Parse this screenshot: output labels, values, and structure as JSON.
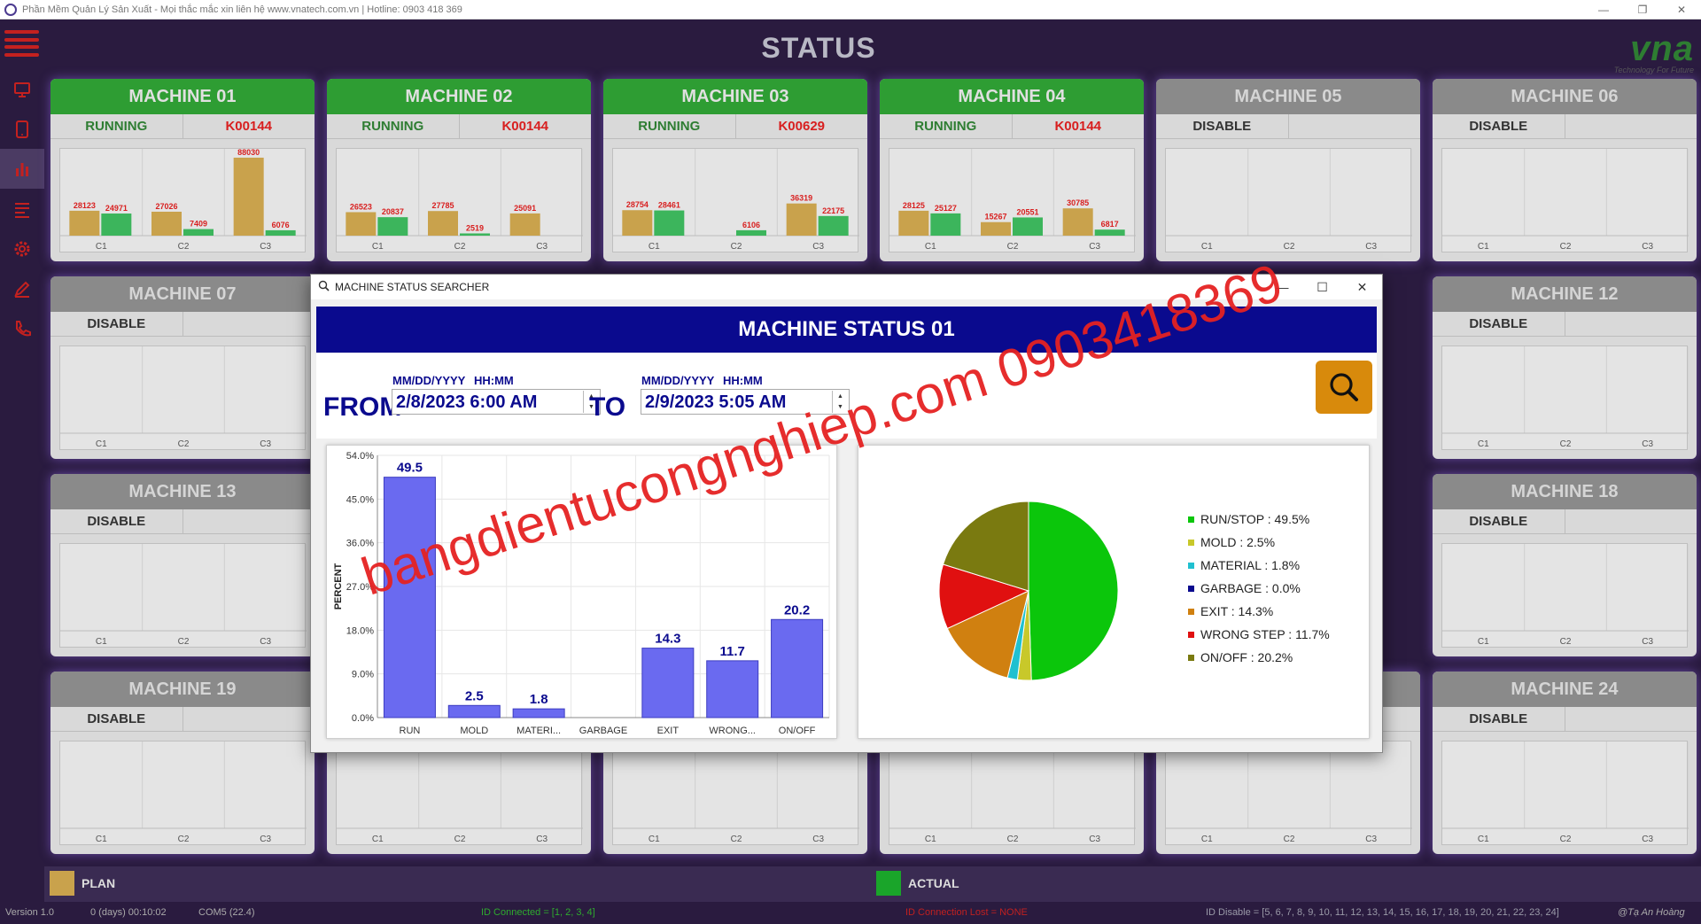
{
  "window": {
    "title": "Phần Mềm Quản Lý Sản Xuất - Mọi thắc mắc xin liên hệ www.vnatech.com.vn | Hotline: 0903 418 369",
    "controls": [
      "—",
      "❐",
      "✕"
    ]
  },
  "header": {
    "title": "STATUS"
  },
  "logo": {
    "mark": "vna",
    "tagline": "Technology For Future"
  },
  "sidebar": {
    "items": [
      {
        "icon": "monitor-icon",
        "active": false
      },
      {
        "icon": "tablet-icon",
        "active": false
      },
      {
        "icon": "bar-chart-icon",
        "active": true
      },
      {
        "icon": "list-icon",
        "active": false
      },
      {
        "icon": "gear-icon",
        "active": false
      },
      {
        "icon": "pencil-icon",
        "active": false
      },
      {
        "icon": "phone-icon",
        "active": false
      }
    ]
  },
  "colors": {
    "plan": "#c9a24c",
    "actual": "#3cb55c",
    "running": "#2e9d33",
    "disabled": "#8a8a8a",
    "value_label": "#d81f1f"
  },
  "machines": [
    {
      "name": "MACHINE 01",
      "status": "RUNNING",
      "code": "K00144",
      "plan": [
        28123,
        27026,
        88030
      ],
      "actual": [
        24971,
        7409,
        6076
      ]
    },
    {
      "name": "MACHINE 02",
      "status": "RUNNING",
      "code": "K00144",
      "plan": [
        26523,
        27785,
        25091
      ],
      "actual": [
        20837,
        2519,
        null
      ]
    },
    {
      "name": "MACHINE 03",
      "status": "RUNNING",
      "code": "K00629",
      "plan": [
        28754,
        null,
        36319
      ],
      "actual": [
        28461,
        6106,
        22175
      ]
    },
    {
      "name": "MACHINE 04",
      "status": "RUNNING",
      "code": "K00144",
      "plan": [
        28125,
        15267,
        30785
      ],
      "actual": [
        25127,
        20551,
        6817
      ]
    },
    {
      "name": "MACHINE 05",
      "status": "DISABLE",
      "code": ""
    },
    {
      "name": "MACHINE 06",
      "status": "DISABLE",
      "code": ""
    },
    {
      "name": "MACHINE 07",
      "status": "DISABLE",
      "code": ""
    },
    {
      "name": "MACHINE 12",
      "status": "DISABLE",
      "code": ""
    },
    {
      "name": "MACHINE 13",
      "status": "DISABLE",
      "code": ""
    },
    {
      "name": "MACHINE 18",
      "status": "DISABLE",
      "code": ""
    },
    {
      "name": "MACHINE 19",
      "status": "DISABLE",
      "code": ""
    },
    {
      "name": "MACHINE 24",
      "status": "DISABLE",
      "code": ""
    },
    {
      "name": "",
      "status": "",
      "code": ""
    },
    {
      "name": "",
      "status": "",
      "code": ""
    },
    {
      "name": "",
      "status": "",
      "code": ""
    },
    {
      "name": "",
      "status": "",
      "code": ""
    }
  ],
  "card_categories": [
    "C1",
    "C2",
    "C3"
  ],
  "legend": {
    "plan": "PLAN",
    "actual": "ACTUAL"
  },
  "statusbar": {
    "version": "Version 1.0",
    "uptime": "0 (days) 00:10:02",
    "port": "COM5 (22.4)",
    "connected": "ID Connected = [1, 2, 3, 4]",
    "lost": "ID Connection Lost = NONE",
    "disabled": "ID Disable = [5, 6, 7, 8, 9, 10, 11, 12, 13, 14, 15, 16, 17, 18, 19, 20, 21, 22, 23, 24]",
    "author": "@Tạ An Hoàng"
  },
  "dialog": {
    "window_title": "MACHINE STATUS SEARCHER",
    "title": "MACHINE STATUS 01",
    "from_label": "FROM",
    "to_label": "TO",
    "date_format": "MM/DD/YYYY",
    "time_format": "HH:MM",
    "from_value": "2/8/2023 6:00 AM",
    "to_value": "2/9/2023 5:05 AM"
  },
  "chart_data": [
    {
      "type": "bar",
      "ylabel": "PERCENT",
      "ylim": [
        0,
        54
      ],
      "yticks": [
        "0.0%",
        "9.0%",
        "18.0%",
        "27.0%",
        "36.0%",
        "45.0%",
        "54.0%"
      ],
      "categories": [
        "RUN",
        "MOLD",
        "MATERI...",
        "GARBAGE",
        "EXIT",
        "WRONG...",
        "ON/OFF"
      ],
      "values": [
        49.5,
        2.5,
        1.8,
        0.0,
        14.3,
        11.7,
        20.2
      ],
      "data_labels": [
        "49.5",
        "2.5",
        "1.8",
        "",
        "14.3",
        "11.7",
        "20.2"
      ],
      "color": "#6a6af0",
      "grid": true
    },
    {
      "type": "pie",
      "labels": [
        "RUN/STOP : 49.5%",
        "MOLD : 2.5%",
        "MATERIAL : 1.8%",
        "GARBAGE : 0.0%",
        "EXIT : 14.3%",
        "WRONG STEP : 11.7%",
        "ON/OFF : 20.2%"
      ],
      "values": [
        49.5,
        2.5,
        1.8,
        0.0,
        14.3,
        11.7,
        20.2
      ],
      "colors": [
        "#0bc60b",
        "#c8c82a",
        "#20c0d0",
        "#0a0a8e",
        "#d08010",
        "#e01010",
        "#7a7a10"
      ],
      "legend_position": "right"
    }
  ],
  "watermark": {
    "text": "bangdientucongnghiep.com 0903418369"
  }
}
